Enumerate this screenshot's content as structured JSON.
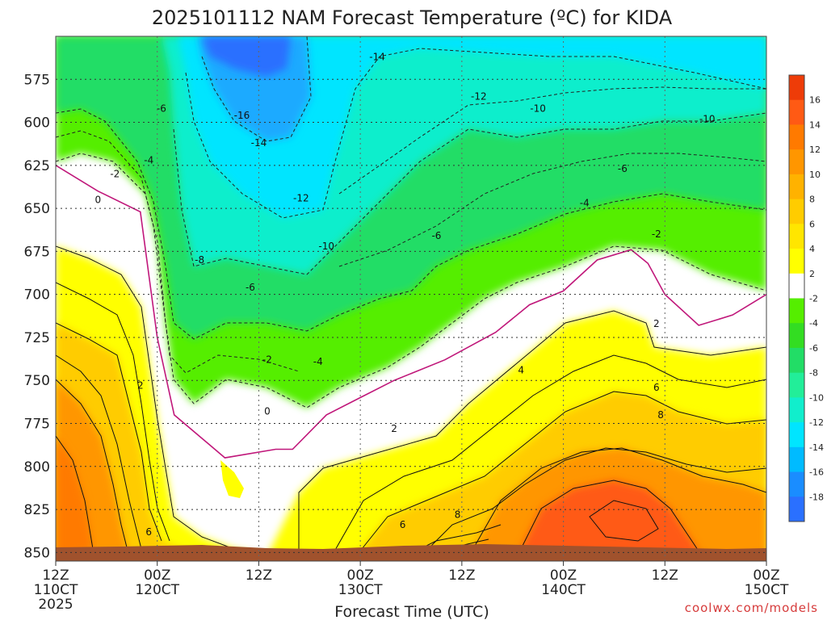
{
  "chart_data": {
    "type": "heatmap",
    "title": "2025101112 NAM Forecast Temperature (ºC) for KIDA",
    "xlabel": "Forecast Time (UTC)",
    "ylabel": "",
    "y_axis": {
      "ticks": [
        "575",
        "600",
        "625",
        "650",
        "675",
        "700",
        "725",
        "750",
        "775",
        "800",
        "825",
        "850"
      ],
      "values": [
        575,
        600,
        625,
        650,
        675,
        700,
        725,
        750,
        775,
        800,
        825,
        850
      ],
      "range": [
        550,
        855
      ],
      "inverted": true
    },
    "x_axis": {
      "ticks": [
        {
          "h": 0,
          "line1": "12Z",
          "line2": "110CT",
          "line3": "2025"
        },
        {
          "h": 12,
          "line1": "00Z",
          "line2": "120CT",
          "line3": ""
        },
        {
          "h": 24,
          "line1": "12Z",
          "line2": "",
          "line3": ""
        },
        {
          "h": 36,
          "line1": "00Z",
          "line2": "130CT",
          "line3": ""
        },
        {
          "h": 48,
          "line1": "12Z",
          "line2": "",
          "line3": ""
        },
        {
          "h": 60,
          "line1": "00Z",
          "line2": "140CT",
          "line3": ""
        },
        {
          "h": 72,
          "line1": "12Z",
          "line2": "",
          "line3": ""
        },
        {
          "h": 84,
          "line1": "00Z",
          "line2": "150CT",
          "line3": ""
        }
      ],
      "range_hours": [
        0,
        84
      ]
    },
    "grid": true,
    "colorbar": {
      "placement": "right",
      "labels": [
        "16",
        "14",
        "12",
        "10",
        "8",
        "6",
        "4",
        "2",
        "-2",
        "-4",
        "-6",
        "-8",
        "-10",
        "-12",
        "-14",
        "-16",
        "-18"
      ],
      "colors": [
        "#ee3c08",
        "#ff5a14",
        "#ff7a00",
        "#ff9600",
        "#ffb200",
        "#ffcc00",
        "#ffe600",
        "#ffff00",
        "#ffffff",
        "#55ee00",
        "#33dd22",
        "#22dd66",
        "#22ee99",
        "#11eecc",
        "#00e5ff",
        "#00bbff",
        "#1a8dff",
        "#2a70ff"
      ]
    },
    "freezing_line_hours": [
      0,
      5,
      10,
      12,
      14,
      20,
      26,
      28,
      32,
      36,
      40,
      46,
      52,
      56,
      60,
      64,
      68,
      70,
      72,
      76,
      80,
      84
    ],
    "freezing_line_pressure": [
      625,
      640,
      652,
      725,
      770,
      795,
      790,
      790,
      770,
      760,
      750,
      738,
      722,
      706,
      698,
      680,
      674,
      682,
      700,
      718,
      712,
      700
    ],
    "contour_labels": [
      {
        "text": "-14",
        "h": 38,
        "p": 562
      },
      {
        "text": "-12",
        "h": 50,
        "p": 585
      },
      {
        "text": "-10",
        "h": 57,
        "p": 592
      },
      {
        "text": "-10",
        "h": 77,
        "p": 598
      },
      {
        "text": "-16",
        "h": 22,
        "p": 596
      },
      {
        "text": "-14",
        "h": 24,
        "p": 612
      },
      {
        "text": "-6",
        "h": 12.5,
        "p": 592
      },
      {
        "text": "-4",
        "h": 11,
        "p": 622
      },
      {
        "text": "-2",
        "h": 7,
        "p": 630
      },
      {
        "text": "0",
        "h": 5,
        "p": 645
      },
      {
        "text": "-12",
        "h": 29,
        "p": 644
      },
      {
        "text": "-10",
        "h": 32,
        "p": 672
      },
      {
        "text": "-6",
        "h": 45,
        "p": 666
      },
      {
        "text": "-6",
        "h": 67,
        "p": 627
      },
      {
        "text": "-4",
        "h": 62.5,
        "p": 647
      },
      {
        "text": "-2",
        "h": 71,
        "p": 665
      },
      {
        "text": "-8",
        "h": 17,
        "p": 680
      },
      {
        "text": "-6",
        "h": 23,
        "p": 696
      },
      {
        "text": "-2",
        "h": 25,
        "p": 738
      },
      {
        "text": "-4",
        "h": 31,
        "p": 739
      },
      {
        "text": "0",
        "h": 25,
        "p": 768
      },
      {
        "text": "2",
        "h": 40,
        "p": 778
      },
      {
        "text": "4",
        "h": 55,
        "p": 744
      },
      {
        "text": "2",
        "h": 71,
        "p": 717
      },
      {
        "text": "2",
        "h": 10,
        "p": 753
      },
      {
        "text": "6",
        "h": 71,
        "p": 754
      },
      {
        "text": "8",
        "h": 71.5,
        "p": 770
      },
      {
        "text": "6",
        "h": 11,
        "p": 838
      },
      {
        "text": "6",
        "h": 41,
        "p": 834
      },
      {
        "text": "8",
        "h": 47.5,
        "p": 828
      }
    ]
  },
  "credit": "coolwx.com/models"
}
